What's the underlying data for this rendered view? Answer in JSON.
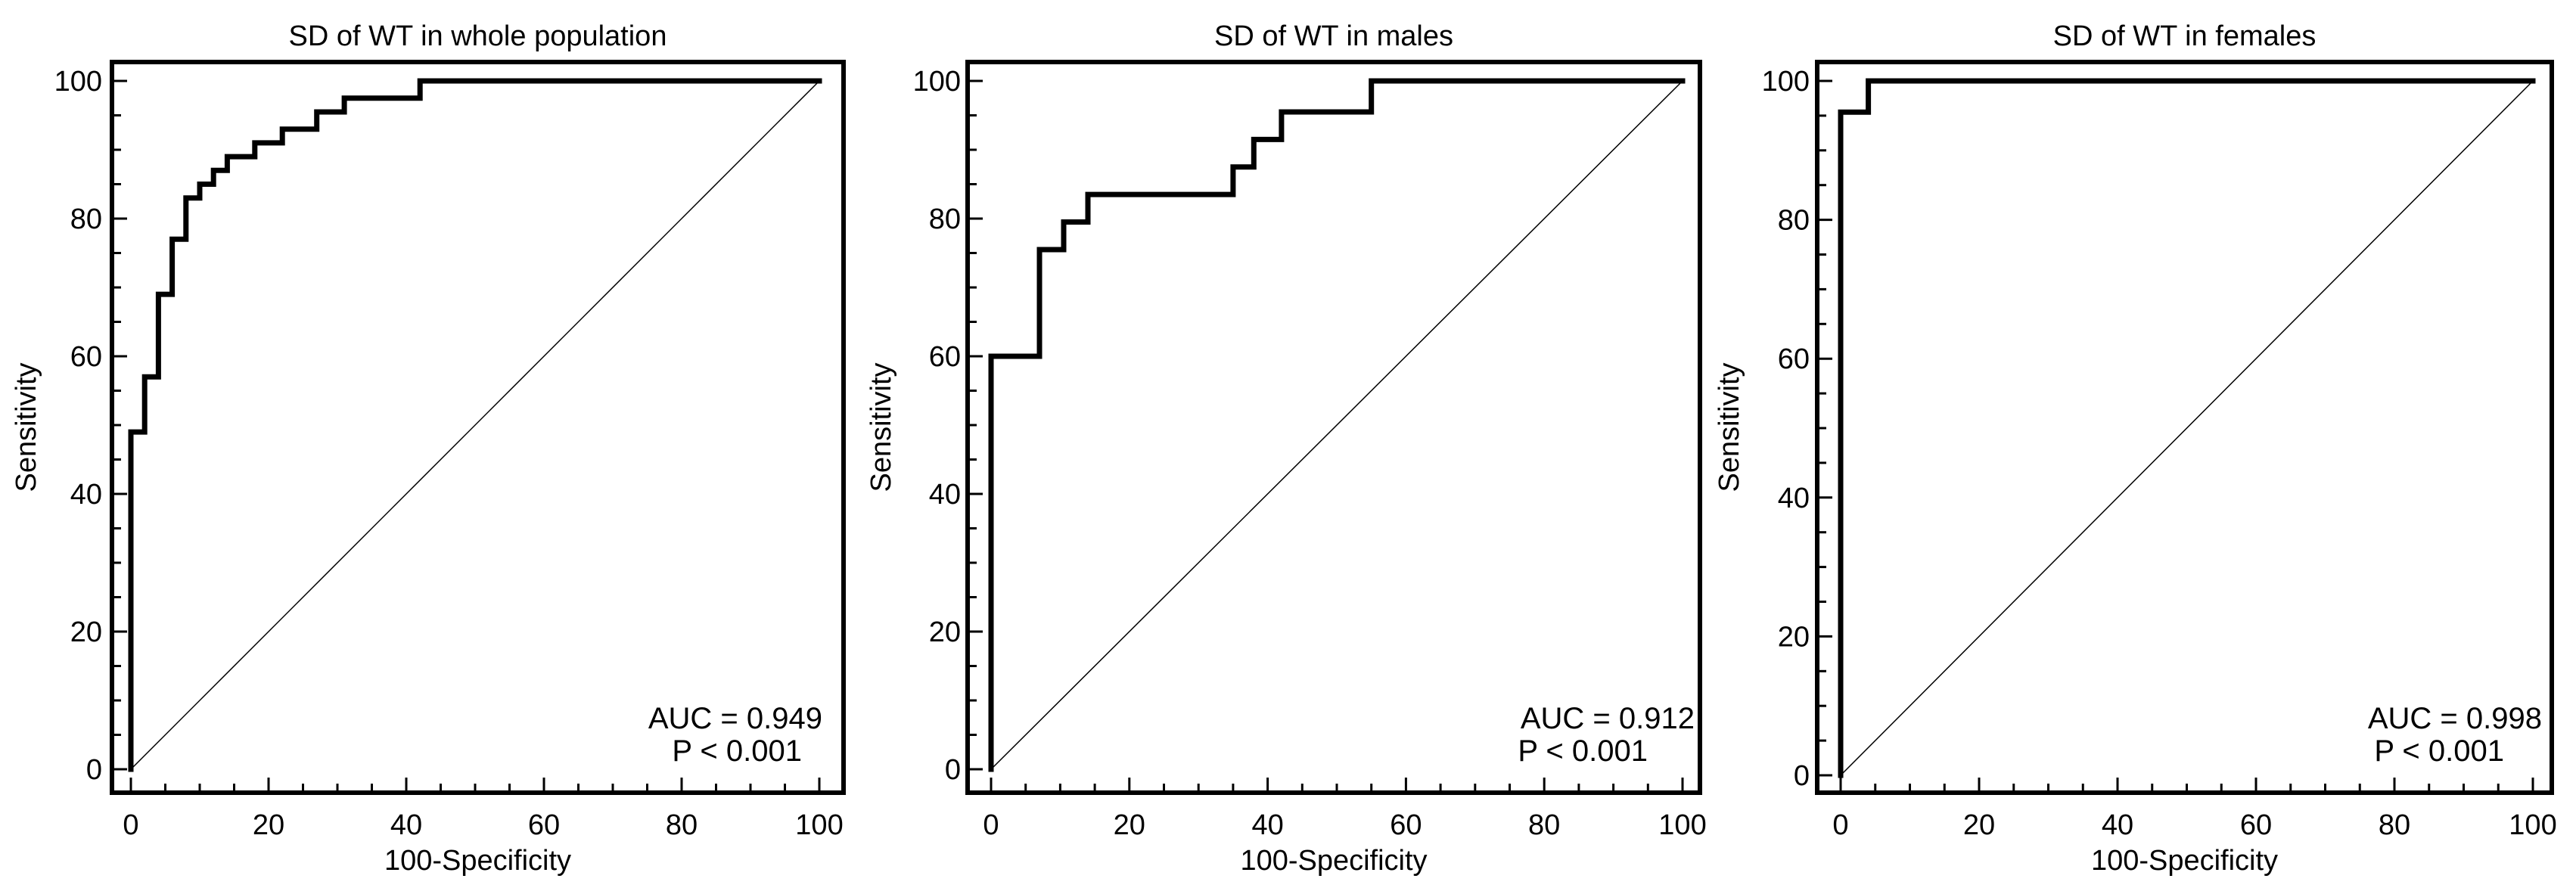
{
  "chart_data": [
    {
      "type": "line",
      "title": "SD of WT in whole  population",
      "xlabel": "100-Specificity",
      "ylabel": "Sensitivity",
      "xlim": [
        0,
        100
      ],
      "ylim": [
        0,
        100
      ],
      "xticks": [
        0,
        20,
        40,
        60,
        80,
        100
      ],
      "yticks": [
        0,
        20,
        40,
        60,
        80,
        100
      ],
      "grid": false,
      "annotations": {
        "auc": "AUC = 0.949",
        "p": "P < 0.001"
      },
      "series": [
        {
          "name": "ROC curve",
          "x": [
            0,
            0,
            2,
            2,
            4,
            4,
            6,
            6,
            8,
            8,
            10,
            10,
            12,
            12,
            14,
            14,
            18,
            18,
            22,
            22,
            27,
            27,
            31,
            31,
            42,
            42,
            100
          ],
          "y": [
            0,
            49,
            49,
            57,
            57,
            69,
            69,
            77,
            77,
            83,
            83,
            85,
            85,
            87,
            87,
            89,
            89,
            91,
            91,
            93,
            93,
            95.5,
            95.5,
            97.5,
            97.5,
            100,
            100
          ]
        },
        {
          "name": "Reference line",
          "x": [
            0,
            100
          ],
          "y": [
            0,
            100
          ]
        }
      ]
    },
    {
      "type": "line",
      "title": "SD of WT in males",
      "xlabel": "100-Specificity",
      "ylabel": "Sensitivity",
      "xlim": [
        0,
        100
      ],
      "ylim": [
        0,
        100
      ],
      "xticks": [
        0,
        20,
        40,
        60,
        80,
        100
      ],
      "yticks": [
        0,
        20,
        40,
        60,
        80,
        100
      ],
      "grid": false,
      "annotations": {
        "auc": "AUC = 0.912",
        "p": "P < 0.001"
      },
      "series": [
        {
          "name": "ROC curve",
          "x": [
            0,
            0,
            7,
            7,
            10.5,
            10.5,
            14,
            14,
            35,
            35,
            38,
            38,
            42,
            42,
            55,
            55,
            100
          ],
          "y": [
            0,
            60,
            60,
            75.5,
            75.5,
            79.5,
            79.5,
            83.5,
            83.5,
            87.5,
            87.5,
            91.5,
            91.5,
            95.5,
            95.5,
            100,
            100
          ]
        },
        {
          "name": "Reference line",
          "x": [
            0,
            100
          ],
          "y": [
            0,
            100
          ]
        }
      ]
    },
    {
      "type": "line",
      "title": "SD of WT in females",
      "xlabel": "100-Specificity",
      "ylabel": "Sensitivity",
      "xlim": [
        0,
        100
      ],
      "ylim": [
        0,
        100
      ],
      "xticks": [
        0,
        20,
        40,
        60,
        80,
        100
      ],
      "yticks": [
        0,
        20,
        40,
        60,
        80,
        100
      ],
      "grid": false,
      "annotations": {
        "auc": "AUC = 0.998",
        "p": "P < 0.001"
      },
      "series": [
        {
          "name": "ROC curve",
          "x": [
            0,
            0,
            4,
            4,
            100
          ],
          "y": [
            0,
            95.5,
            95.5,
            100,
            100
          ]
        },
        {
          "name": "Reference line",
          "x": [
            0,
            100
          ],
          "y": [
            0,
            100
          ]
        }
      ]
    }
  ]
}
